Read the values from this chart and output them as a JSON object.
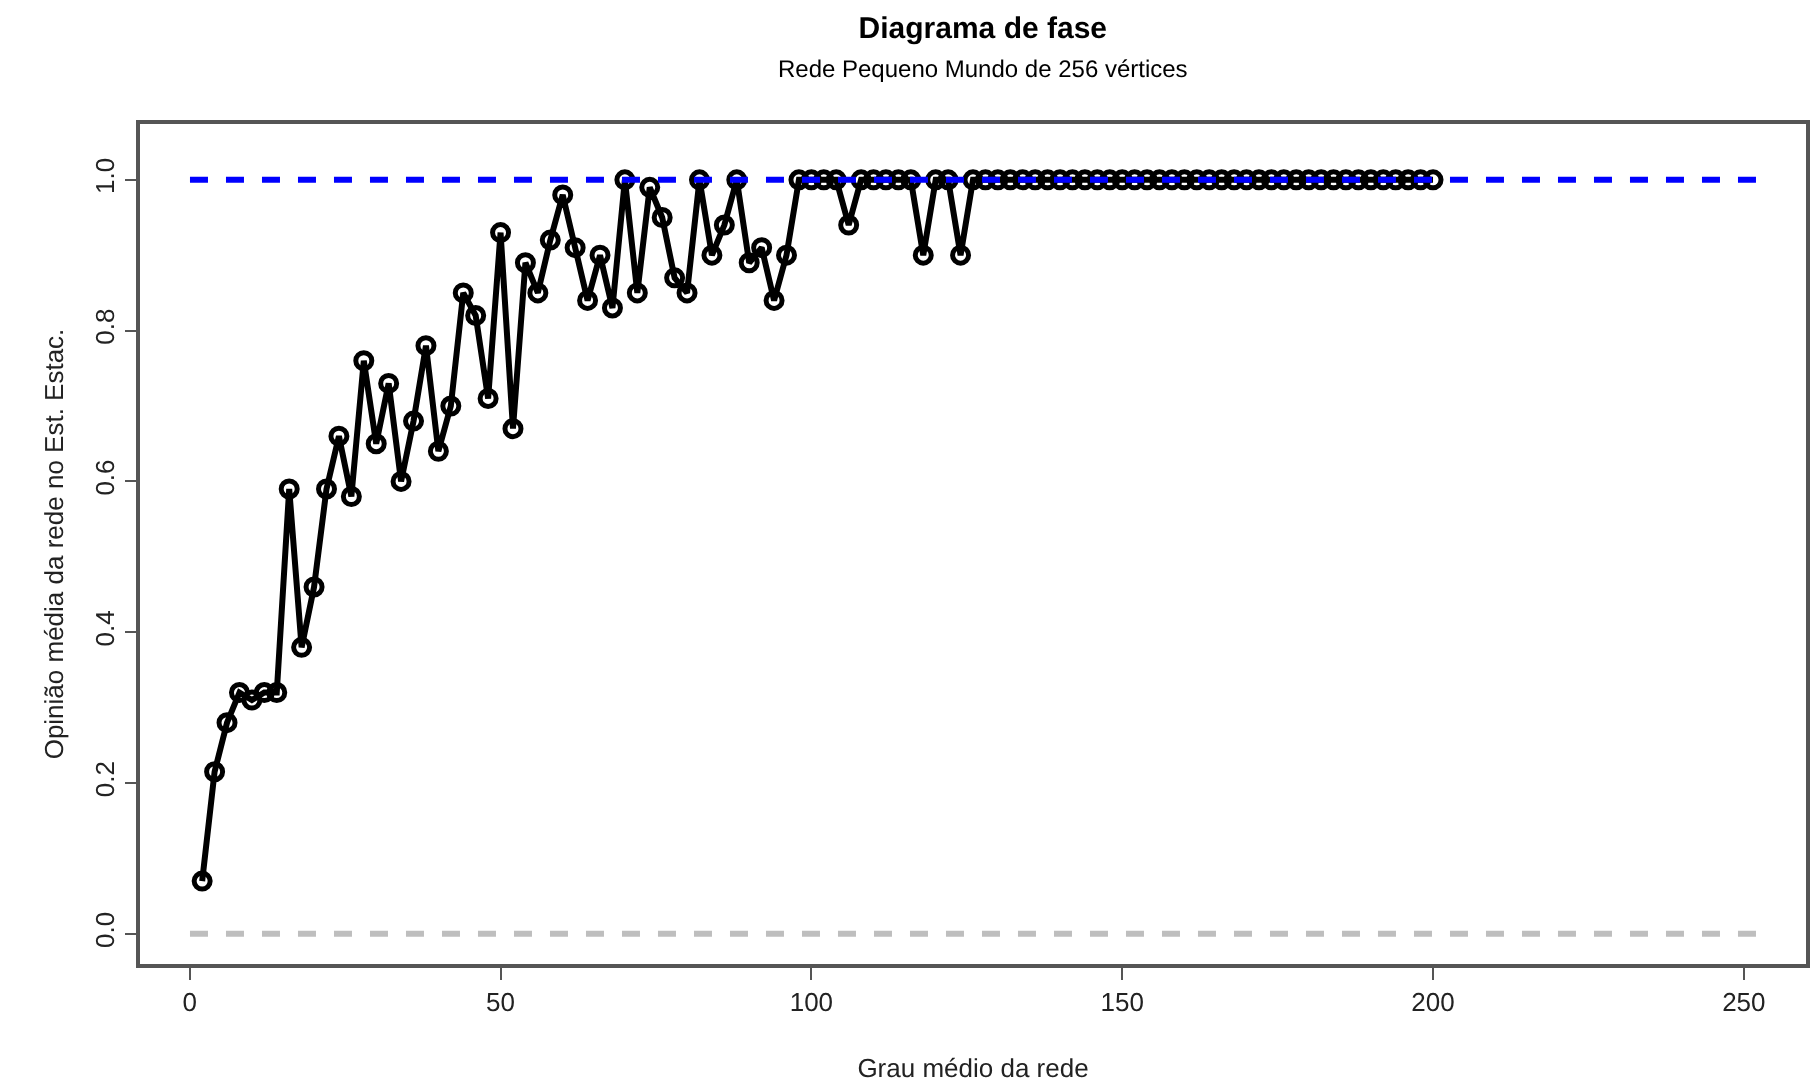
{
  "chart_data": {
    "type": "line",
    "title": "Diagrama de fase",
    "subtitle": "Rede Pequeno Mundo de 256 vértices",
    "xlabel": "Grau médio da rede",
    "ylabel": "Opinião média da rede no Est. Estac.",
    "x": [
      2,
      4,
      6,
      8,
      10,
      12,
      14,
      16,
      18,
      20,
      22,
      24,
      26,
      28,
      30,
      32,
      34,
      36,
      38,
      40,
      42,
      44,
      46,
      48,
      50,
      52,
      54,
      56,
      58,
      60,
      62,
      64,
      66,
      68,
      70,
      72,
      74,
      76,
      78,
      80,
      82,
      84,
      86,
      88,
      90,
      92,
      94,
      96,
      98,
      100,
      102,
      104,
      106,
      108,
      110,
      112,
      114,
      116,
      118,
      120,
      122,
      124,
      126,
      128,
      130,
      132,
      134,
      136,
      138,
      140,
      142,
      144,
      146,
      148,
      150,
      152,
      154,
      156,
      158,
      160,
      162,
      164,
      166,
      168,
      170,
      172,
      174,
      176,
      178,
      180,
      182,
      184,
      186,
      188,
      190,
      192,
      194,
      196,
      198,
      200
    ],
    "series": [
      {
        "color": "#000000",
        "values": [
          0.07,
          0.215,
          0.28,
          0.32,
          0.31,
          0.32,
          0.32,
          0.59,
          0.38,
          0.46,
          0.59,
          0.66,
          0.58,
          0.76,
          0.65,
          0.73,
          0.6,
          0.68,
          0.78,
          0.64,
          0.7,
          0.85,
          0.82,
          0.71,
          0.93,
          0.67,
          0.89,
          0.85,
          0.92,
          0.98,
          0.91,
          0.84,
          0.9,
          0.83,
          1.0,
          0.85,
          0.99,
          0.95,
          0.87,
          0.85,
          1.0,
          0.9,
          0.94,
          1.0,
          0.89,
          0.91,
          0.84,
          0.9,
          1.0,
          1.0,
          1.0,
          1.0,
          0.94,
          1.0,
          1.0,
          1.0,
          1.0,
          1.0,
          0.9,
          1.0,
          1.0,
          0.9,
          1.0,
          1.0,
          1.0,
          1.0,
          1.0,
          1.0,
          1.0,
          1.0,
          1.0,
          1.0,
          1.0,
          1.0,
          1.0,
          1.0,
          1.0,
          1.0,
          1.0,
          1.0,
          1.0,
          1.0,
          1.0,
          1.0,
          1.0,
          1.0,
          1.0,
          1.0,
          1.0,
          1.0,
          1.0,
          1.0,
          1.0,
          1.0,
          1.0,
          1.0,
          1.0,
          1.0,
          1.0,
          1.0
        ]
      }
    ],
    "marker": "circle",
    "line_style": "solid",
    "xlim": [
      -8,
      260
    ],
    "xticks": [
      0,
      50,
      100,
      150,
      200,
      250
    ],
    "ylim": [
      -0.04,
      1.074
    ],
    "yticks": [
      {
        "value": 0,
        "label": "0.0"
      },
      {
        "value": 0.2,
        "label": "0.2"
      },
      {
        "value": 0.4,
        "label": "0.4"
      },
      {
        "value": 0.6,
        "label": "0.6"
      },
      {
        "value": 0.8,
        "label": "0.8"
      },
      {
        "value": 1,
        "label": "1.0"
      }
    ],
    "ref_lines": [
      {
        "axis": "y",
        "value": 1,
        "color": "#0000ff",
        "line_style": "dashed"
      },
      {
        "axis": "y",
        "value": 0,
        "color": "#bebebe",
        "line_style": "dashed"
      }
    ]
  }
}
